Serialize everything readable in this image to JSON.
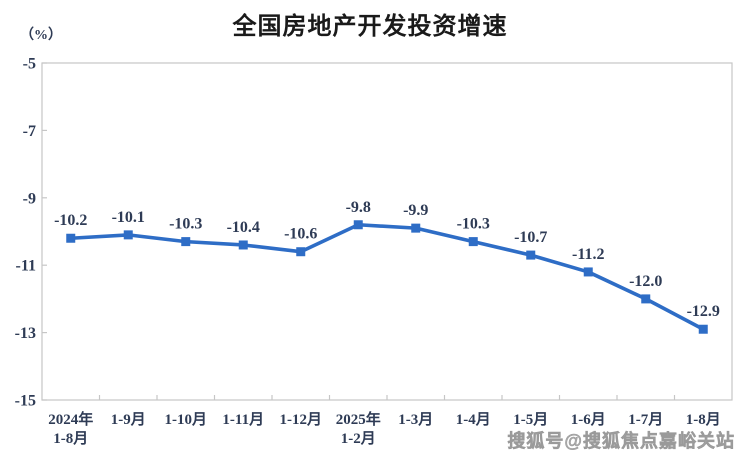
{
  "title": "全国房地产开发投资增速",
  "unit_label": "（%）",
  "watermark": "搜狐号@搜狐焦点嘉峪关站",
  "colors": {
    "series": "#2e6dc6",
    "text": "#2e3b55",
    "axis": "#c6c6c6",
    "title": "#1a1a1a",
    "watermark": "#ababab"
  },
  "chart_data": {
    "type": "line",
    "title": "全国房地产开发投资增速",
    "ylabel": "（%）",
    "xlabel": "",
    "grid": false,
    "legend_position": "none",
    "marker": "square",
    "ylim": [
      -15,
      -5
    ],
    "yticks": [
      -5,
      -7,
      -9,
      -11,
      -13,
      -15
    ],
    "categories": [
      [
        "2024年",
        "1-8月"
      ],
      [
        "1-9月"
      ],
      [
        "1-10月"
      ],
      [
        "1-11月"
      ],
      [
        "1-12月"
      ],
      [
        "2025年",
        "1-2月"
      ],
      [
        "1-3月"
      ],
      [
        "1-4月"
      ],
      [
        "1-5月"
      ],
      [
        "1-6月"
      ],
      [
        "1-7月"
      ],
      [
        "1-8月"
      ]
    ],
    "values": [
      -10.2,
      -10.1,
      -10.3,
      -10.4,
      -10.6,
      -9.8,
      -9.9,
      -10.3,
      -10.7,
      -11.2,
      -12.0,
      -12.9
    ],
    "data_labels": [
      "-10.2",
      "-10.1",
      "-10.3",
      "-10.4",
      "-10.6",
      "-9.8",
      "-9.9",
      "-10.3",
      "-10.7",
      "-11.2",
      "-12.0",
      "-12.9"
    ]
  }
}
